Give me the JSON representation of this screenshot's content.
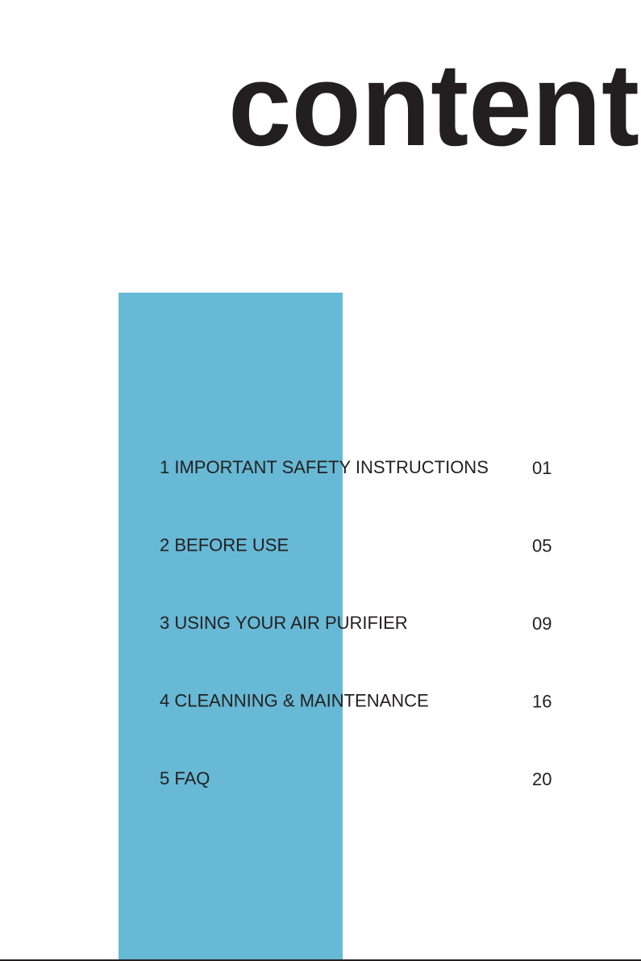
{
  "title": "content",
  "toc": [
    {
      "label": "1 IMPORTANT SAFETY INSTRUCTIONS",
      "page": "01"
    },
    {
      "label": "2 BEFORE USE",
      "page": "05"
    },
    {
      "label": "3 USING YOUR AIR PURIFIER",
      "page": "09"
    },
    {
      "label": "4 CLEANNING & MAINTENANCE",
      "page": "16"
    },
    {
      "label": "5 FAQ",
      "page": "20"
    }
  ]
}
